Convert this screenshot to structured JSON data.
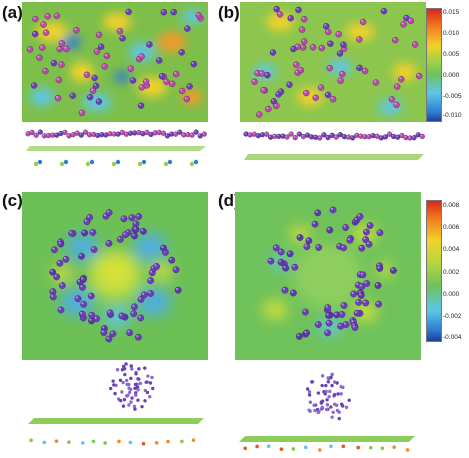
{
  "panels": {
    "a": {
      "label": "(a)"
    },
    "b": {
      "label": "(b)"
    },
    "c": {
      "label": "(c)"
    },
    "d": {
      "label": "(d)"
    }
  },
  "colorbar_top": {
    "ticks": [
      "0.015",
      "0.010",
      "0.005",
      "0.000",
      "-0.005",
      "-0.010"
    ]
  },
  "colorbar_bottom": {
    "ticks": [
      "0.008",
      "0.006",
      "0.004",
      "0.002",
      "0.000",
      "-0.002",
      "-0.004"
    ]
  },
  "colors": {
    "map_base": "#7dbf4a",
    "pos_yellow": "#f2d12a",
    "pos_orange": "#f39a2a",
    "neg_cyan": "#5ec7e6",
    "neg_blue": "#2e7dd1",
    "atom_purple": "#6a3fb8",
    "atom_pink": "#c04aa8",
    "sheet_green": "#7fc84a"
  }
}
